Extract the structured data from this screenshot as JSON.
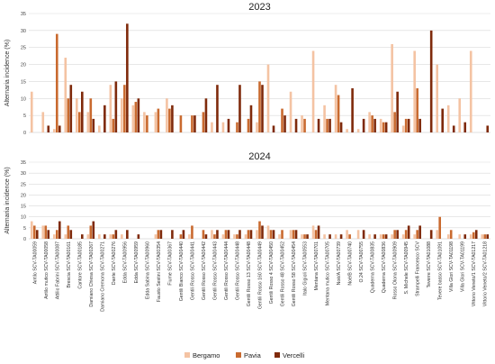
{
  "chart_data": {
    "type": "bar",
    "ylabel": "Alternaria incidence (%)",
    "ylim": [
      0,
      35
    ],
    "yticks": [
      0,
      5,
      10,
      15,
      20,
      25,
      30,
      35
    ],
    "legend_position": "bottom-center",
    "grid": true,
    "categories": [
      "Antilo SCV-TA00059",
      "Antilo mutico SCV-TA00058",
      "Attilio Fabrini SCV-TA00087",
      "Brescia SCV-TA00161",
      "Cantore SCV-TA00185",
      "Damiano Chiesa SCV-TA00267",
      "Damiano Cremona SCV-TA00271",
      "Dante SCV-TA00276",
      "Edda SCV-TA00956",
      "Edda SCV-TA00959",
      "Edda Sabina SCV-TA00960",
      "Fausto Sestini SCV-TA00354",
      "Fiume SCV-TA00367",
      "Gentili Bianco SCV-TA00440",
      "Gentili Rosso SCV-TA00441",
      "Gentili Rosso SCV-TA00442",
      "Gentili Rosso SCV-TA00443",
      "Gentili Rosso SCV-TA00444",
      "Gentili Rosso SCV-TA00448",
      "Gentili Rosso 13 SCV-TA00448",
      "Gentili Rosso 160 SCV-TA00449",
      "Gentili Rosso 4 SCV-TA00450",
      "Gentili Rosso 48 SCV-TA00452",
      "Gentili Rosso 58 SCV-TA00454",
      "Italo Gigioli SCV-TA00553",
      "Mentana SCV-TA00701",
      "Mentana mutico SCV-TA00705",
      "Noè/A SCV-TA00739",
      "Noè/B SCV-TA00740",
      "O.24 SCV-TA00755",
      "Quaderna SCV-TA00835",
      "Quaderna SCV-TA00836",
      "Rosso Olona SCV-TA00909",
      "S. Michele SCV-TA00945",
      "Strampelli Francesco SCV",
      "Teverre SCV-TA01088",
      "Tevere basso SCV-TA01091",
      "Villa Glori SCV-TA01198",
      "Villa Glori SCV-TA01199",
      "Vittorio Veneto/1 SCV-TA01217",
      "Vittorio Veneto/2 SCV-TA01218"
    ],
    "colors": {
      "Bergamo": "#f4c3a3",
      "Pavia": "#c96a2f",
      "Vercelli": "#7f2a0b"
    },
    "panels": [
      {
        "title": "2023",
        "series": [
          {
            "name": "Bergamo",
            "values": [
              12,
              6,
              1,
              22,
              10,
              6,
              2,
              14,
              10,
              8,
              6,
              6,
              10,
              0,
              0,
              0,
              3,
              3,
              0,
              0,
              3,
              20,
              0,
              12,
              5,
              24,
              8,
              14,
              1,
              1,
              6,
              4,
              26,
              2,
              24,
              0,
              20,
              8,
              10,
              24,
              0
            ]
          },
          {
            "name": "Pavia",
            "values": [
              0,
              0,
              29,
              10,
              6,
              10,
              0,
              4,
              14,
              9,
              5,
              7,
              7,
              5,
              5,
              6,
              0,
              0,
              3,
              4,
              15,
              0,
              7,
              0,
              4,
              0,
              4,
              11,
              0,
              0,
              5,
              3,
              6,
              4,
              13,
              0,
              0,
              0,
              0,
              0,
              0
            ]
          },
          {
            "name": "Vercelli",
            "values": [
              0,
              2,
              2,
              14,
              12,
              4,
              8,
              15,
              32,
              10,
              0,
              0,
              8,
              0,
              5,
              10,
              14,
              4,
              14,
              8,
              14,
              2,
              5,
              4,
              0,
              4,
              4,
              3,
              13,
              4,
              4,
              3,
              12,
              4,
              4,
              30,
              7,
              2,
              3,
              0,
              2
            ]
          }
        ]
      },
      {
        "title": "2024",
        "series": [
          {
            "name": "Bergamo",
            "values": [
              8,
              6,
              2,
              2,
              0,
              2,
              2,
              2,
              2,
              0,
              0,
              2,
              0,
              0,
              2,
              0,
              4,
              2,
              2,
              2,
              4,
              6,
              2,
              4,
              2,
              6,
              2,
              2,
              4,
              4,
              2,
              2,
              2,
              2,
              2,
              0,
              4,
              2,
              2,
              2,
              2
            ]
          },
          {
            "name": "Pavia",
            "values": [
              6,
              6,
              4,
              6,
              0,
              6,
              0,
              2,
              0,
              0,
              0,
              4,
              0,
              2,
              6,
              4,
              2,
              4,
              2,
              4,
              8,
              4,
              4,
              4,
              2,
              4,
              0,
              0,
              2,
              0,
              0,
              2,
              4,
              4,
              4,
              0,
              10,
              4,
              0,
              3,
              2
            ]
          },
          {
            "name": "Vercelli",
            "values": [
              4,
              4,
              8,
              4,
              2,
              8,
              2,
              4,
              4,
              2,
              0,
              4,
              4,
              4,
              0,
              2,
              4,
              4,
              4,
              4,
              6,
              4,
              0,
              4,
              2,
              6,
              2,
              2,
              0,
              4,
              2,
              2,
              4,
              6,
              6,
              4,
              0,
              0,
              2,
              4,
              2
            ]
          }
        ]
      }
    ]
  }
}
